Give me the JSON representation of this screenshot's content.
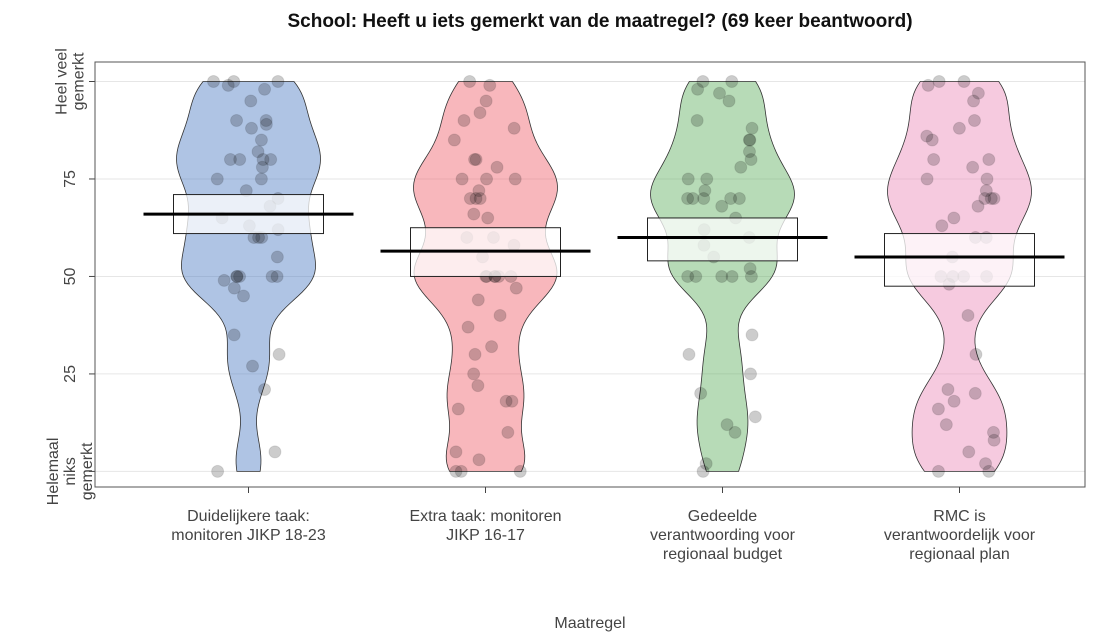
{
  "chart_data": {
    "type": "pirate",
    "title": "School: Heeft u iets gemerkt van de maatregel? (69 keer beantwoord)",
    "x_label": "Maatregel",
    "categories": [
      "Duidelijkere taak:\nmonitoren JIKP 18-23",
      "Extra taak: monitoren\nJIKP 16-17",
      "Gedeelde\nverantwoording voor\nregionaal budget",
      "RMC is\nverantwoordelijk voor\nregionaal plan"
    ],
    "ylim": [
      -4,
      105
    ],
    "yticks": [
      {
        "value": 0,
        "label": "Helemaal\nniks\ngemerkt"
      },
      25,
      50,
      75,
      {
        "value": 100,
        "label": "Heel veel\ngemerkt"
      }
    ],
    "grid": true,
    "groups": [
      {
        "color": "#4d7cc4",
        "mean": 66,
        "ci": [
          61,
          71
        ],
        "points": [
          100,
          100,
          100,
          99,
          98,
          95,
          90,
          90,
          89,
          88,
          85,
          82,
          80,
          80,
          80,
          80,
          78,
          75,
          75,
          72,
          70,
          68,
          65,
          63,
          62,
          60,
          60,
          60,
          55,
          50,
          50,
          50,
          50,
          50,
          49,
          47,
          45,
          35,
          30,
          27,
          21,
          5,
          0
        ]
      },
      {
        "color": "#f0606a",
        "mean": 56.5,
        "ci": [
          50,
          62.5
        ],
        "points": [
          100,
          99,
          95,
          92,
          90,
          88,
          85,
          80,
          80,
          78,
          75,
          75,
          75,
          72,
          70,
          70,
          70,
          66,
          65,
          60,
          60,
          58,
          55,
          50,
          50,
          50,
          50,
          50,
          50,
          47,
          44,
          40,
          37,
          32,
          30,
          25,
          22,
          18,
          18,
          16,
          10,
          5,
          3,
          0,
          0,
          0
        ]
      },
      {
        "color": "#60b060",
        "mean": 60,
        "ci": [
          54,
          65
        ],
        "points": [
          100,
          100,
          98,
          97,
          95,
          90,
          88,
          85,
          85,
          82,
          80,
          78,
          75,
          75,
          72,
          70,
          70,
          70,
          70,
          70,
          68,
          65,
          62,
          60,
          58,
          55,
          52,
          50,
          50,
          50,
          50,
          50,
          35,
          30,
          25,
          20,
          14,
          12,
          10,
          2,
          0
        ]
      },
      {
        "color": "#ec8ab8",
        "mean": 55,
        "ci": [
          47.5,
          61
        ],
        "points": [
          100,
          100,
          99,
          97,
          95,
          90,
          88,
          86,
          85,
          80,
          80,
          78,
          75,
          75,
          72,
          70,
          70,
          70,
          68,
          65,
          63,
          60,
          60,
          55,
          50,
          50,
          50,
          50,
          48,
          40,
          30,
          21,
          20,
          18,
          16,
          12,
          10,
          8,
          5,
          2,
          0,
          0
        ]
      }
    ]
  }
}
